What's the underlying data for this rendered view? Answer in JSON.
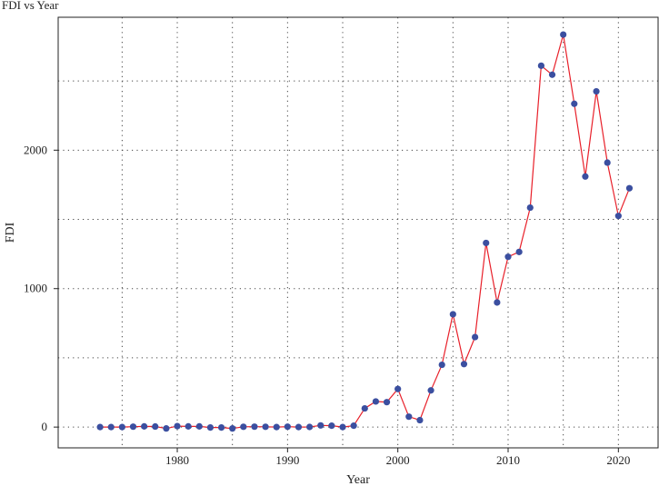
{
  "chart_data": {
    "type": "line",
    "title": "FDI vs Year",
    "xlabel": "Year",
    "ylabel": "FDI",
    "xlim": [
      1969.2,
      2023.6
    ],
    "ylim": [
      -150,
      2960
    ],
    "xticks": [
      1980,
      1990,
      2000,
      2010,
      2020
    ],
    "yticks": [
      0,
      1000,
      2000
    ],
    "grid": true,
    "series": [
      {
        "line_color": "#e8202a",
        "marker_color": "#3b4fa0",
        "x": [
          1973,
          1974,
          1975,
          1976,
          1977,
          1978,
          1979,
          1980,
          1981,
          1982,
          1983,
          1984,
          1985,
          1986,
          1987,
          1988,
          1989,
          1990,
          1991,
          1992,
          1993,
          1994,
          1995,
          1996,
          1997,
          1998,
          1999,
          2000,
          2001,
          2002,
          2003,
          2004,
          2005,
          2006,
          2007,
          2008,
          2009,
          2010,
          2011,
          2012,
          2013,
          2014,
          2015,
          2016,
          2017,
          2018,
          2019,
          2020,
          2021
        ],
        "y": [
          0,
          0,
          0,
          3,
          5,
          4,
          -10,
          7,
          5,
          5,
          -3,
          -3,
          -10,
          2,
          3,
          2,
          0,
          3,
          0,
          1,
          12,
          10,
          0,
          10,
          135,
          185,
          180,
          275,
          75,
          50,
          265,
          450,
          815,
          455,
          650,
          1330,
          900,
          1230,
          1265,
          1585,
          2610,
          2545,
          2835,
          2335,
          1810,
          2425,
          1910,
          1525,
          1725
        ]
      }
    ]
  }
}
